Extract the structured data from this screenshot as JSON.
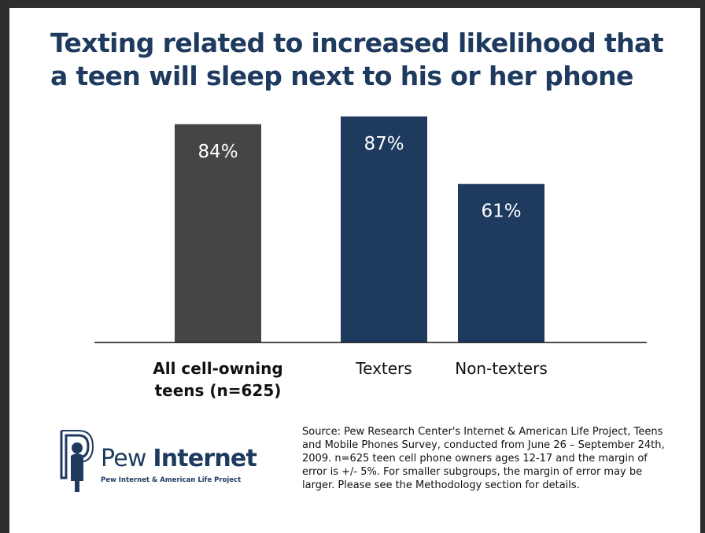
{
  "chart_data": {
    "type": "bar",
    "title": "Texting related to increased likelihood that a teen will sleep next to his or her phone",
    "categories": [
      "All cell-owning teens (n=625)",
      "Texters",
      "Non-texters"
    ],
    "category_lines": [
      [
        "All cell-owning",
        "teens (n=625)"
      ],
      [
        "Texters"
      ],
      [
        "Non-texters"
      ]
    ],
    "values": [
      84,
      87,
      61
    ],
    "value_labels": [
      "84%",
      "87%",
      "61%"
    ],
    "bar_colors": [
      "#454545",
      "#1e3a5f",
      "#1e3a5f"
    ],
    "ylim": [
      0,
      100
    ],
    "grid": false,
    "xlabel": "",
    "ylabel": ""
  },
  "logo": {
    "word_light": "Pew ",
    "word_bold": "Internet",
    "subtitle": "Pew Internet & American Life Project"
  },
  "source_note": "Source: Pew Research Center's Internet & American Life Project, Teens and Mobile Phones Survey, conducted from June 26 – September 24th, 2009. n=625 teen cell phone owners ages 12-17 and the margin of error is +/- 5%. For smaller subgroups, the margin of error may be larger. Please see the Methodology section for details."
}
